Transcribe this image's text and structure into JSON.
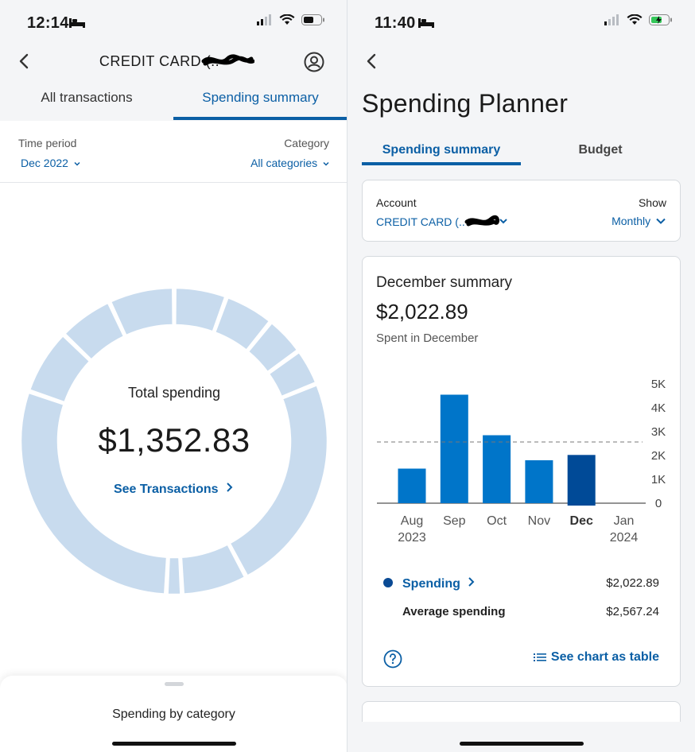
{
  "left": {
    "status": {
      "time": "12:14"
    },
    "header": {
      "title": "CREDIT CARD (.."
    },
    "tabs": [
      {
        "label": "All transactions",
        "active": false
      },
      {
        "label": "Spending summary",
        "active": true
      }
    ],
    "filters": {
      "time_period_label": "Time period",
      "time_period_value": "Dec 2022",
      "category_label": "Category",
      "category_value": "All categories"
    },
    "donut": {
      "label": "Total spending",
      "amount": "$1,352.83",
      "link": "See Transactions",
      "segment_color": "#c8dbee"
    },
    "sheet": {
      "title": "Spending by category"
    }
  },
  "right": {
    "status": {
      "time": "11:40"
    },
    "page_title": "Spending Planner",
    "tabs": [
      {
        "label": "Spending summary",
        "active": true
      },
      {
        "label": "Budget",
        "active": false
      }
    ],
    "account": {
      "label": "Account",
      "value": "CREDIT CARD (..",
      "show_label": "Show",
      "show_value": "Monthly"
    },
    "summary": {
      "title": "December summary",
      "amount": "$2,022.89",
      "subtitle": "Spent in December"
    },
    "legend": {
      "spending_label": "Spending",
      "spending_value": "$2,022.89",
      "average_label": "Average spending",
      "average_value": "$2,567.24",
      "table_link": "See chart as table"
    },
    "colors": {
      "bar": "#0075c9",
      "bar_selected": "#004a97",
      "accent": "#0b5fa5"
    }
  },
  "chart_data": {
    "type": "bar",
    "categories": [
      "Aug 2023",
      "Sep 2023",
      "Oct 2023",
      "Nov 2023",
      "Dec 2023",
      "Jan 2024"
    ],
    "x_tick_labels": [
      {
        "month": "Aug",
        "year": "2023"
      },
      {
        "month": "Sep",
        "year": ""
      },
      {
        "month": "Oct",
        "year": ""
      },
      {
        "month": "Nov",
        "year": ""
      },
      {
        "month": "Dec",
        "year": ""
      },
      {
        "month": "Jan",
        "year": "2024"
      }
    ],
    "values": [
      1450,
      4550,
      2850,
      1800,
      2022.89,
      null
    ],
    "selected_index": 4,
    "average": 2567.24,
    "ylim": [
      0,
      5000
    ],
    "y_ticks": [
      0,
      1000,
      2000,
      3000,
      4000,
      5000
    ],
    "y_tick_labels": [
      "0",
      "1K",
      "2K",
      "3K",
      "4K",
      "5K"
    ],
    "grid": false
  }
}
